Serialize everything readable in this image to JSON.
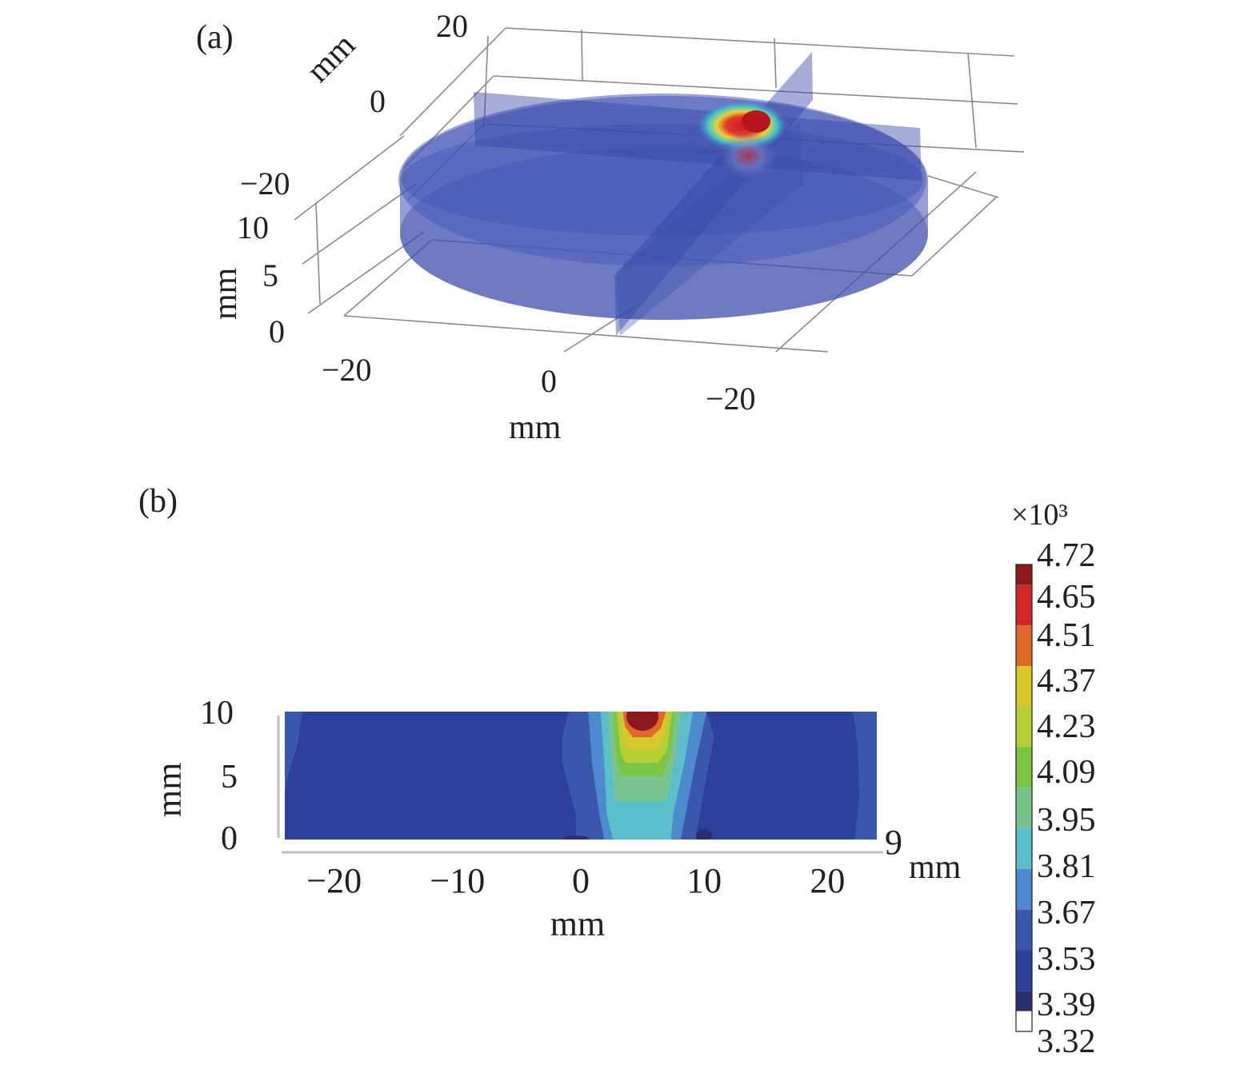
{
  "panel_a": {
    "label": "(a)",
    "y_axis": {
      "unit": "mm",
      "ticks": [
        "20",
        "0",
        "−20"
      ]
    },
    "z_axis": {
      "unit": "mm",
      "ticks": [
        "10",
        "5",
        "0"
      ]
    },
    "x_axis": {
      "unit": "mm",
      "ticks": [
        "−20",
        "0",
        "−20"
      ]
    }
  },
  "panel_b": {
    "label": "(b)",
    "y_axis": {
      "unit": "mm",
      "ticks": [
        "10",
        "5",
        "0"
      ]
    },
    "x_axis": {
      "unit": "mm",
      "ticks": [
        "−20",
        "−10",
        "0",
        "10",
        "20"
      ]
    },
    "depth_label": {
      "value": "9",
      "unit": "mm"
    }
  },
  "colorbar": {
    "multiplier": "×10³",
    "levels": [
      "4.72",
      "4.65",
      "4.51",
      "4.37",
      "4.23",
      "4.09",
      "3.95",
      "3.81",
      "3.67",
      "3.53",
      "3.39",
      "3.32"
    ],
    "colors": [
      "#8b1a1e",
      "#d1252a",
      "#e2672a",
      "#d5c82b",
      "#b7cf35",
      "#7cc544",
      "#78c48c",
      "#5bbfcb",
      "#4c89cd",
      "#3b57ac",
      "#2e3f9c",
      "#26306f"
    ]
  },
  "chart_data": {
    "type": "heatmap",
    "title": "",
    "xlabel": "mm",
    "ylabel": "mm",
    "xlim": [
      -24,
      24
    ],
    "ylim": [
      0,
      10
    ],
    "x_ticks": [
      -20,
      -10,
      0,
      10,
      20
    ],
    "y_ticks": [
      0,
      5,
      10
    ],
    "colorbar_scale": 1000,
    "levels": [
      3.32,
      3.39,
      3.53,
      3.67,
      3.81,
      3.95,
      4.09,
      4.23,
      4.37,
      4.51,
      4.65,
      4.72
    ],
    "contours": [
      {
        "level": 3.53,
        "points": [
          [
            -1.0,
            10
          ],
          [
            2.7,
            10
          ],
          [
            10.2,
            10
          ],
          [
            10.8,
            8
          ],
          [
            10.0,
            4
          ],
          [
            9.3,
            0
          ],
          [
            -0.4,
            0
          ],
          [
            -0.4,
            2
          ],
          [
            -1.5,
            6
          ],
          [
            -1.5,
            8
          ]
        ]
      },
      {
        "level": 3.67,
        "points": [
          [
            0.6,
            10
          ],
          [
            10.2,
            10
          ],
          [
            9.3,
            6
          ],
          [
            8.5,
            2
          ],
          [
            8.1,
            0
          ],
          [
            1.9,
            0
          ],
          [
            1.5,
            2
          ],
          [
            0.9,
            6
          ]
        ]
      },
      {
        "level": 3.81,
        "points": [
          [
            1.6,
            10
          ],
          [
            9.1,
            10
          ],
          [
            8.4,
            6
          ],
          [
            7.5,
            2
          ],
          [
            7.3,
            0
          ],
          [
            2.6,
            0
          ],
          [
            2.1,
            2
          ],
          [
            1.9,
            6
          ]
        ]
      },
      {
        "level": 3.95,
        "points": [
          [
            2.2,
            10
          ],
          [
            8.2,
            10
          ],
          [
            7.6,
            6
          ],
          [
            6.9,
            3
          ],
          [
            2.8,
            3
          ],
          [
            2.5,
            6
          ]
        ]
      },
      {
        "level": 4.09,
        "points": [
          [
            2.6,
            10
          ],
          [
            7.6,
            10
          ],
          [
            7.3,
            6.5
          ],
          [
            6.6,
            5
          ],
          [
            3.2,
            5
          ],
          [
            2.9,
            6.5
          ]
        ]
      },
      {
        "level": 4.23,
        "points": [
          [
            2.9,
            10
          ],
          [
            7.4,
            10
          ],
          [
            7.0,
            7
          ],
          [
            6.3,
            6
          ],
          [
            3.6,
            6
          ],
          [
            3.2,
            7
          ]
        ]
      },
      {
        "level": 4.37,
        "points": [
          [
            3.2,
            10
          ],
          [
            7.1,
            10
          ],
          [
            6.8,
            8
          ],
          [
            6.0,
            7
          ],
          [
            3.9,
            7
          ],
          [
            3.4,
            8
          ]
        ]
      },
      {
        "level": 4.51,
        "points": [
          [
            3.4,
            10
          ],
          [
            6.9,
            10
          ],
          [
            6.5,
            8.7
          ],
          [
            5.7,
            8
          ],
          [
            4.2,
            8
          ],
          [
            3.6,
            8.8
          ]
        ]
      },
      {
        "level": 4.65,
        "points": [
          [
            3.8,
            10
          ],
          [
            6.2,
            10
          ],
          [
            5.8,
            9.2
          ],
          [
            5.0,
            8.8
          ],
          [
            4.2,
            9.2
          ]
        ]
      }
    ]
  }
}
